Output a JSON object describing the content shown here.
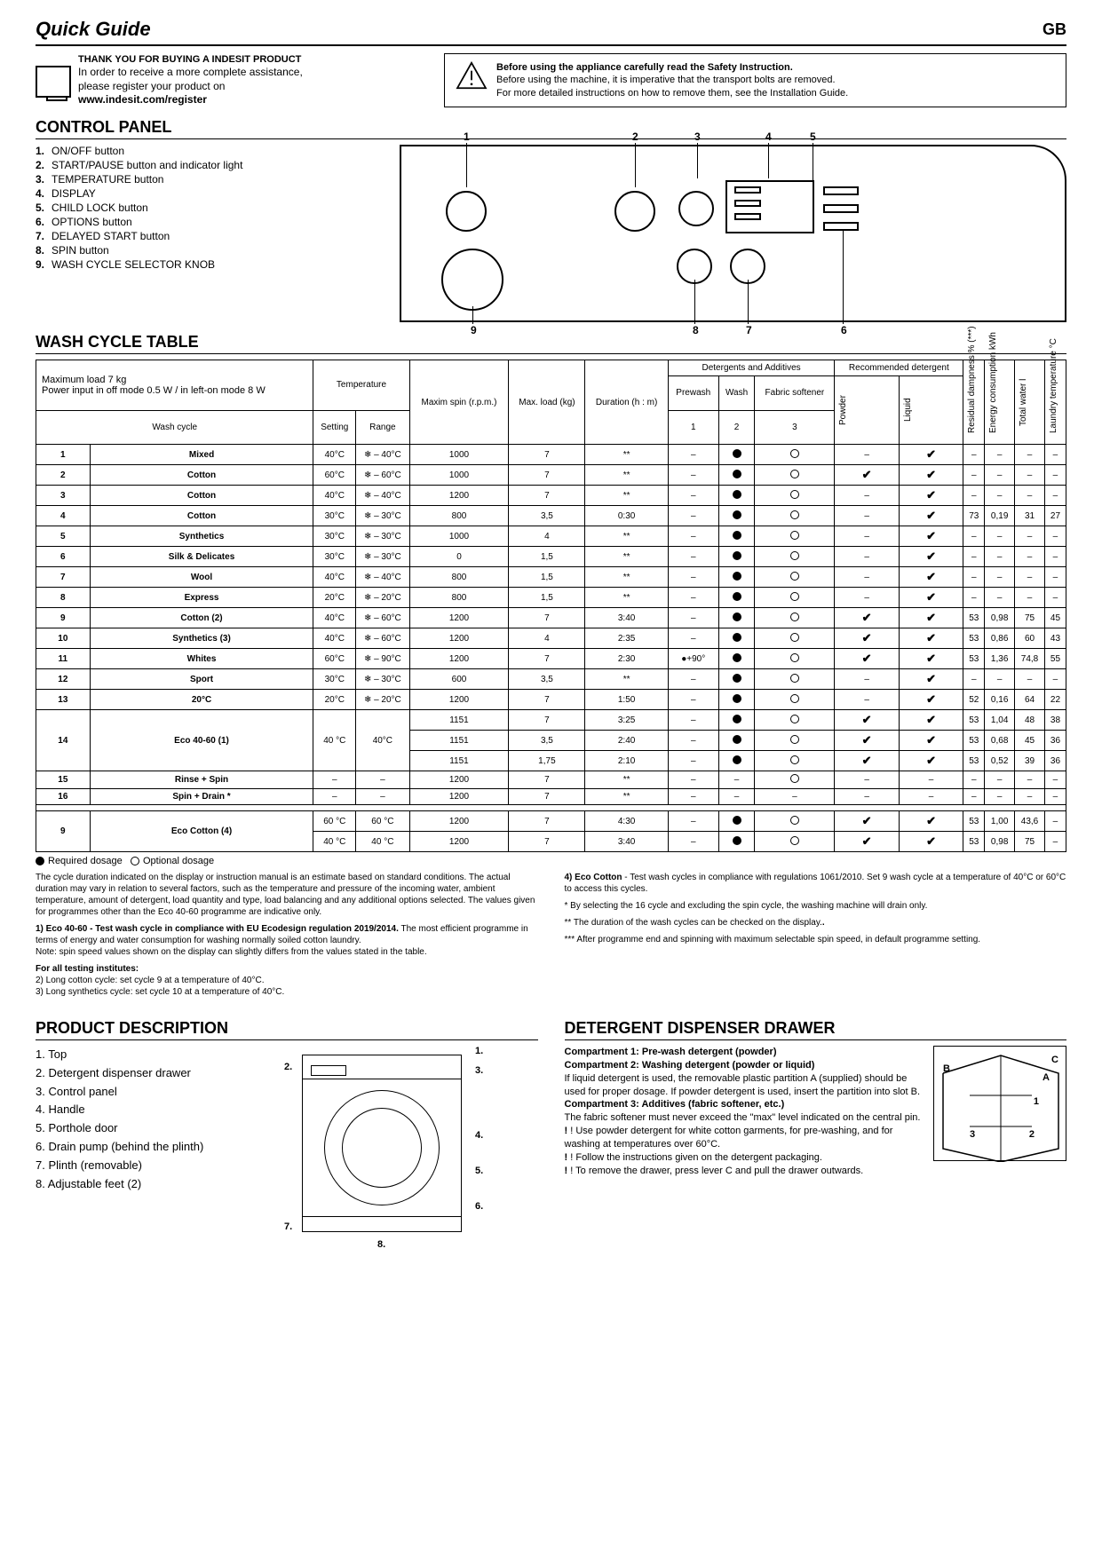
{
  "header": {
    "title": "Quick Guide",
    "country": "GB"
  },
  "register": {
    "thank": "THANK YOU FOR BUYING A INDESIT PRODUCT",
    "line1": "In order to receive a more complete assistance,",
    "line2": "please register your product on",
    "url": "www.indesit.com/register"
  },
  "warning": {
    "bold": "Before using the appliance carefully read the Safety Instruction.",
    "line1": "Before using the machine, it is imperative that the transport bolts are removed.",
    "line2": "For more detailed instructions on how to remove them, see the Installation Guide."
  },
  "control": {
    "heading": "CONTROL PANEL",
    "items": [
      {
        "n": "1.",
        "t": "ON/OFF button"
      },
      {
        "n": "2.",
        "t": "START/PAUSE button and indicator light"
      },
      {
        "n": "3.",
        "t": "TEMPERATURE button"
      },
      {
        "n": "4.",
        "t": "DISPLAY"
      },
      {
        "n": "5.",
        "t": "CHILD LOCK button"
      },
      {
        "n": "6.",
        "t": "OPTIONS button"
      },
      {
        "n": "7.",
        "t": "DELAYED START button"
      },
      {
        "n": "8.",
        "t": "SPIN button"
      },
      {
        "n": "9.",
        "t": "WASH CYCLE SELECTOR KNOB"
      }
    ]
  },
  "wash": {
    "heading": "WASH CYCLE TABLE",
    "maxload": "Maximum load 7 kg",
    "power": "Power input in off mode 0.5 W / in left-on mode 8 W",
    "cols": {
      "wash_cycle": "Wash cycle",
      "temp": "Temperature",
      "setting": "Setting",
      "range": "Range",
      "spin": "Maxim spin (r.p.m.)",
      "load": "Max. load (kg)",
      "dur": "Duration (h : m)",
      "det": "Detergents and Additives",
      "pre": "Prewash",
      "washc": "Wash",
      "soft": "Fabric softener",
      "c1": "1",
      "c2": "2",
      "c3": "3",
      "rec": "Recommended detergent",
      "pow": "Powder",
      "liq": "Liquid",
      "damp": "Residual dampness % (***)",
      "energy": "Energy consumption kWh",
      "water": "Total water l",
      "ltemp": "Laundry temperature °C"
    },
    "rows": [
      {
        "n": "1",
        "name": "Mixed",
        "set": "40°C",
        "rng": "❄ – 40°C",
        "spin": "1000",
        "ld": "7",
        "dur": "**",
        "pre": "–",
        "w": "dot",
        "s": "ring",
        "p": "–",
        "l": "check",
        "d": "–",
        "e": "–",
        "tw": "–",
        "lt": "–"
      },
      {
        "n": "2",
        "name": "Cotton",
        "set": "60°C",
        "rng": "❄ – 60°C",
        "spin": "1000",
        "ld": "7",
        "dur": "**",
        "pre": "–",
        "w": "dot",
        "s": "ring",
        "p": "check",
        "l": "check",
        "d": "–",
        "e": "–",
        "tw": "–",
        "lt": "–"
      },
      {
        "n": "3",
        "name": "Cotton",
        "set": "40°C",
        "rng": "❄ – 40°C",
        "spin": "1200",
        "ld": "7",
        "dur": "**",
        "pre": "–",
        "w": "dot",
        "s": "ring",
        "p": "–",
        "l": "check",
        "d": "–",
        "e": "–",
        "tw": "–",
        "lt": "–"
      },
      {
        "n": "4",
        "name": "Cotton",
        "set": "30°C",
        "rng": "❄ – 30°C",
        "spin": "800",
        "ld": "3,5",
        "dur": "0:30",
        "pre": "–",
        "w": "dot",
        "s": "ring",
        "p": "–",
        "l": "check",
        "d": "73",
        "e": "0,19",
        "tw": "31",
        "lt": "27"
      },
      {
        "n": "5",
        "name": "Synthetics",
        "set": "30°C",
        "rng": "❄ – 30°C",
        "spin": "1000",
        "ld": "4",
        "dur": "**",
        "pre": "–",
        "w": "dot",
        "s": "ring",
        "p": "–",
        "l": "check",
        "d": "–",
        "e": "–",
        "tw": "–",
        "lt": "–"
      },
      {
        "n": "6",
        "name": "Silk & Delicates",
        "set": "30°C",
        "rng": "❄ – 30°C",
        "spin": "0",
        "ld": "1,5",
        "dur": "**",
        "pre": "–",
        "w": "dot",
        "s": "ring",
        "p": "–",
        "l": "check",
        "d": "–",
        "e": "–",
        "tw": "–",
        "lt": "–"
      },
      {
        "n": "7",
        "name": "Wool",
        "set": "40°C",
        "rng": "❄ – 40°C",
        "spin": "800",
        "ld": "1,5",
        "dur": "**",
        "pre": "–",
        "w": "dot",
        "s": "ring",
        "p": "–",
        "l": "check",
        "d": "–",
        "e": "–",
        "tw": "–",
        "lt": "–"
      },
      {
        "n": "8",
        "name": "Express",
        "set": "20°C",
        "rng": "❄ – 20°C",
        "spin": "800",
        "ld": "1,5",
        "dur": "**",
        "pre": "–",
        "w": "dot",
        "s": "ring",
        "p": "–",
        "l": "check",
        "d": "–",
        "e": "–",
        "tw": "–",
        "lt": "–"
      },
      {
        "n": "9",
        "name": "Cotton (2)",
        "set": "40°C",
        "rng": "❄ – 60°C",
        "spin": "1200",
        "ld": "7",
        "dur": "3:40",
        "pre": "–",
        "w": "dot",
        "s": "ring",
        "p": "check",
        "l": "check",
        "d": "53",
        "e": "0,98",
        "tw": "75",
        "lt": "45"
      },
      {
        "n": "10",
        "name": "Synthetics (3)",
        "set": "40°C",
        "rng": "❄ – 60°C",
        "spin": "1200",
        "ld": "4",
        "dur": "2:35",
        "pre": "–",
        "w": "dot",
        "s": "ring",
        "p": "check",
        "l": "check",
        "d": "53",
        "e": "0,86",
        "tw": "60",
        "lt": "43"
      },
      {
        "n": "11",
        "name": "Whites",
        "set": "60°C",
        "rng": "❄ – 90°C",
        "spin": "1200",
        "ld": "7",
        "dur": "2:30",
        "pre": "●+90°",
        "w": "dot",
        "s": "ring",
        "p": "check",
        "l": "check",
        "d": "53",
        "e": "1,36",
        "tw": "74,8",
        "lt": "55"
      },
      {
        "n": "12",
        "name": "Sport",
        "set": "30°C",
        "rng": "❄ – 30°C",
        "spin": "600",
        "ld": "3,5",
        "dur": "**",
        "pre": "–",
        "w": "dot",
        "s": "ring",
        "p": "–",
        "l": "check",
        "d": "–",
        "e": "–",
        "tw": "–",
        "lt": "–"
      },
      {
        "n": "13",
        "name": "20°C",
        "set": "20°C",
        "rng": "❄ – 20°C",
        "spin": "1200",
        "ld": "7",
        "dur": "1:50",
        "pre": "–",
        "w": "dot",
        "s": "ring",
        "p": "–",
        "l": "check",
        "d": "52",
        "e": "0,16",
        "tw": "64",
        "lt": "22"
      }
    ],
    "eco14": {
      "n": "14",
      "name": "Eco 40-60 (1)",
      "set": "40 °C",
      "rng": "40°C",
      "sub": [
        {
          "spin": "1151",
          "ld": "7",
          "dur": "3:25",
          "pre": "–",
          "w": "dot",
          "s": "ring",
          "p": "check",
          "l": "check",
          "d": "53",
          "e": "1,04",
          "tw": "48",
          "lt": "38"
        },
        {
          "spin": "1151",
          "ld": "3,5",
          "dur": "2:40",
          "pre": "–",
          "w": "dot",
          "s": "ring",
          "p": "check",
          "l": "check",
          "d": "53",
          "e": "0,68",
          "tw": "45",
          "lt": "36"
        },
        {
          "spin": "1151",
          "ld": "1,75",
          "dur": "2:10",
          "pre": "–",
          "w": "dot",
          "s": "ring",
          "p": "check",
          "l": "check",
          "d": "53",
          "e": "0,52",
          "tw": "39",
          "lt": "36"
        }
      ]
    },
    "r15": {
      "n": "15",
      "name": "Rinse + Spin",
      "set": "–",
      "rng": "–",
      "spin": "1200",
      "ld": "7",
      "dur": "**",
      "pre": "–",
      "w": "–",
      "s": "ring",
      "p": "–",
      "l": "–",
      "d": "–",
      "e": "–",
      "tw": "–",
      "lt": "–"
    },
    "r16": {
      "n": "16",
      "name": "Spin + Drain *",
      "set": "–",
      "rng": "–",
      "spin": "1200",
      "ld": "7",
      "dur": "**",
      "pre": "–",
      "w": "–",
      "s": "–",
      "p": "–",
      "l": "–",
      "d": "–",
      "e": "–",
      "tw": "–",
      "lt": "–"
    },
    "eco9": {
      "n": "9",
      "name": "Eco Cotton (4)",
      "sub": [
        {
          "set": "60 °C",
          "rng": "60 °C",
          "spin": "1200",
          "ld": "7",
          "dur": "4:30",
          "pre": "–",
          "w": "dot",
          "s": "ring",
          "p": "check",
          "l": "check",
          "d": "53",
          "e": "1,00",
          "tw": "43,6",
          "lt": "–"
        },
        {
          "set": "40 °C",
          "rng": "40 °C",
          "spin": "1200",
          "ld": "7",
          "dur": "3:40",
          "pre": "–",
          "w": "dot",
          "s": "ring",
          "p": "check",
          "l": "check",
          "d": "53",
          "e": "0,98",
          "tw": "75",
          "lt": "–"
        }
      ]
    },
    "legend": {
      "req": "Required dosage",
      "opt": "Optional dosage"
    }
  },
  "notes": {
    "left1": "The cycle duration indicated on the display or instruction manual is an estimate based on standard conditions. The actual duration may vary in relation to several factors, such as the temperature and pressure of the incoming water, ambient temperature, amount of detergent, load quantity and type, load balancing and any additional options selected. The values given for programmes other than the Eco 40-60 programme are indicative only.",
    "left2b": "1) Eco 40-60",
    "left2": " - Test wash cycle in compliance with EU Ecodesign regulation 2019/2014.",
    "left2a": " The most efficient programme in terms of energy and water consumption for washing normally soiled cotton laundry.",
    "left2n": "Note: spin speed values shown on the display can slightly differs from the values stated in the table.",
    "left3b": "For all testing institutes:",
    "left3a": "2)  Long cotton cycle: set cycle 9 at a temperature of 40°C.",
    "left3c": "3)  Long synthetics cycle: set cycle 10 at a temperature of 40°C.",
    "right1b": "4) Eco Cotton",
    "right1": " -  Test wash cycles in compliance with regulations 1061/2010. Set 9 wash cycle at a temperature of 40°C or 60°C to access this cycles.",
    "right2": "* By selecting the 16 cycle and excluding the spin cycle, the washing machine will drain only.",
    "right3": "** The duration of the wash cycles can be checked on the display.",
    "right4": "*** After programme end and spinning with maximum selectable spin speed, in default programme setting."
  },
  "product": {
    "heading": "PRODUCT DESCRIPTION",
    "items": [
      "1. Top",
      "2. Detergent dispenser drawer",
      "3. Control panel",
      "4. Handle",
      "5. Porthole door",
      "6. Drain pump (behind the plinth)",
      "7. Plinth (removable)",
      "8. Adjustable feet (2)"
    ],
    "labels": {
      "1": "1.",
      "2": "2.",
      "3": "3.",
      "4": "4.",
      "5": "5.",
      "6": "6.",
      "7": "7.",
      "8": "8."
    }
  },
  "detergent": {
    "heading": "DETERGENT DISPENSER DRAWER",
    "comp1": "Compartment 1: Pre-wash detergent (powder)",
    "comp2": "Compartment 2: Washing detergent (powder or liquid)",
    "comp2t": "If liquid detergent is used, the removable plastic partition A (supplied) should be used for proper dosage. If powder detergent is used, insert the partition into slot B.",
    "comp3": "Compartment 3: Additives (fabric softener, etc.)",
    "comp3t": "The fabric softener must never exceed the \"max\" level indicated on the central pin.",
    "w1": "! Use powder detergent for white cotton garments, for pre-washing, and for washing at temperatures over 60°C.",
    "w2": "! Follow the instructions given on the detergent packaging.",
    "w3": "! To remove the drawer, press lever C and pull the drawer outwards.",
    "dlabels": {
      "A": "A",
      "B": "B",
      "C": "C",
      "1": "1",
      "2": "2",
      "3": "3"
    }
  }
}
